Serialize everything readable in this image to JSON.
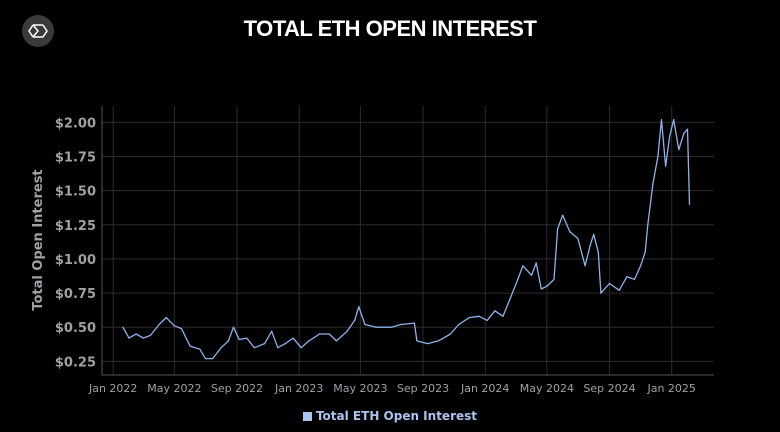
{
  "logo": {
    "icon": "sigma-hexagon-logo"
  },
  "chart_data": {
    "type": "line",
    "title": "TOTAL ETH OPEN INTEREST",
    "xlabel": "",
    "ylabel": "Total Open Interest",
    "ylim": [
      0.15,
      2.12
    ],
    "yticks": [
      0.25,
      0.5,
      0.75,
      1.0,
      1.25,
      1.5,
      1.75,
      2.0
    ],
    "ytick_labels": [
      "$0.25",
      "$0.50",
      "$0.75",
      "$1.00",
      "$1.25",
      "$1.50",
      "$1.75",
      "$2.00"
    ],
    "xlim": [
      "2021-12-10",
      "2025-03-25"
    ],
    "xticks": [
      "2022-01-01",
      "2022-05-01",
      "2022-09-01",
      "2023-01-01",
      "2023-05-01",
      "2023-09-01",
      "2024-01-01",
      "2024-05-01",
      "2024-09-01",
      "2025-01-01"
    ],
    "xtick_labels": [
      "Jan 2022",
      "May 2022",
      "Sep 2022",
      "Jan 2023",
      "May 2023",
      "Sep 2023",
      "Jan 2024",
      "May 2024",
      "Sep 2024",
      "Jan 2025"
    ],
    "grid": true,
    "legend": "bottom",
    "color": "#8fb2ea",
    "series": [
      {
        "name": "Total ETH Open Interest",
        "x": [
          "2022-01-20",
          "2022-02-01",
          "2022-02-15",
          "2022-03-01",
          "2022-03-15",
          "2022-04-01",
          "2022-04-15",
          "2022-05-01",
          "2022-05-15",
          "2022-06-01",
          "2022-06-20",
          "2022-07-01",
          "2022-07-15",
          "2022-08-01",
          "2022-08-15",
          "2022-08-25",
          "2022-09-05",
          "2022-09-20",
          "2022-10-05",
          "2022-10-25",
          "2022-11-08",
          "2022-11-20",
          "2022-12-05",
          "2022-12-20",
          "2023-01-05",
          "2023-01-20",
          "2023-02-10",
          "2023-03-01",
          "2023-03-15",
          "2023-04-05",
          "2023-04-20",
          "2023-04-28",
          "2023-05-10",
          "2023-06-01",
          "2023-07-01",
          "2023-07-20",
          "2023-08-15",
          "2023-08-20",
          "2023-09-10",
          "2023-10-01",
          "2023-10-25",
          "2023-11-10",
          "2023-12-01",
          "2023-12-20",
          "2024-01-05",
          "2024-01-20",
          "2024-02-05",
          "2024-02-20",
          "2024-03-05",
          "2024-03-15",
          "2024-04-01",
          "2024-04-10",
          "2024-04-20",
          "2024-05-01",
          "2024-05-15",
          "2024-05-22",
          "2024-06-01",
          "2024-06-15",
          "2024-07-01",
          "2024-07-15",
          "2024-07-25",
          "2024-08-01",
          "2024-08-10",
          "2024-08-15",
          "2024-09-01",
          "2024-09-20",
          "2024-10-05",
          "2024-10-20",
          "2024-11-01",
          "2024-11-10",
          "2024-11-15",
          "2024-11-25",
          "2024-12-05",
          "2024-12-12",
          "2024-12-20",
          "2024-12-28",
          "2025-01-05",
          "2025-01-15",
          "2025-01-25",
          "2025-02-01",
          "2025-02-05"
        ],
        "values": [
          0.5,
          0.42,
          0.45,
          0.42,
          0.44,
          0.52,
          0.57,
          0.51,
          0.49,
          0.36,
          0.34,
          0.27,
          0.27,
          0.35,
          0.4,
          0.5,
          0.41,
          0.42,
          0.35,
          0.38,
          0.47,
          0.35,
          0.38,
          0.42,
          0.35,
          0.4,
          0.45,
          0.45,
          0.4,
          0.47,
          0.55,
          0.65,
          0.52,
          0.5,
          0.5,
          0.52,
          0.53,
          0.4,
          0.38,
          0.4,
          0.45,
          0.52,
          0.57,
          0.58,
          0.55,
          0.62,
          0.58,
          0.72,
          0.85,
          0.95,
          0.88,
          0.97,
          0.78,
          0.8,
          0.85,
          1.22,
          1.32,
          1.2,
          1.15,
          0.95,
          1.1,
          1.18,
          1.05,
          0.75,
          0.82,
          0.77,
          0.87,
          0.85,
          0.95,
          1.05,
          1.25,
          1.55,
          1.75,
          2.02,
          1.68,
          1.9,
          2.02,
          1.8,
          1.92,
          1.95,
          1.4
        ]
      }
    ]
  }
}
